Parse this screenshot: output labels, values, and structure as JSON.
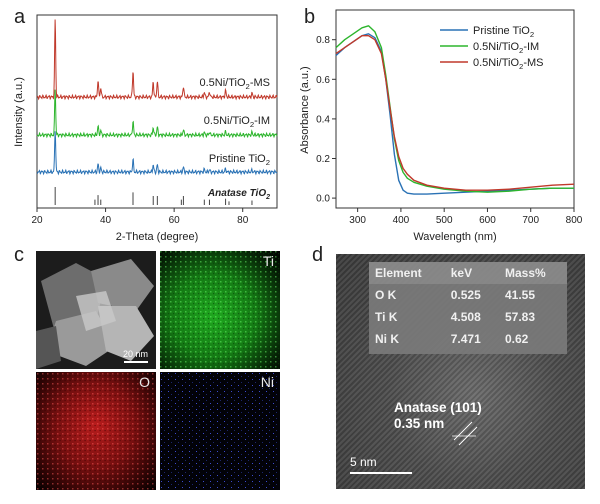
{
  "panels": {
    "a": "a",
    "b": "b",
    "c": "c",
    "d": "d"
  },
  "chart_data": [
    {
      "type": "line",
      "title": "",
      "xlabel": "2-Theta (degree)",
      "ylabel": "Intensity (a.u.)",
      "xlim": [
        20,
        90
      ],
      "x_ticks": [
        20,
        40,
        60,
        80
      ],
      "series": [
        {
          "name": "0.5Ni/TiO2-MS",
          "label_main": "0.5Ni/TiO",
          "label_sub": "2",
          "label_tail": "-MS",
          "color": "#c0392b",
          "peaks": [
            [
              25.3,
              1.0
            ],
            [
              37.8,
              0.22
            ],
            [
              38.6,
              0.12
            ],
            [
              48.0,
              0.34
            ],
            [
              53.9,
              0.2
            ],
            [
              55.1,
              0.2
            ],
            [
              62.7,
              0.14
            ],
            [
              68.8,
              0.06
            ],
            [
              70.3,
              0.07
            ],
            [
              75.0,
              0.08
            ],
            [
              82.7,
              0.05
            ]
          ]
        },
        {
          "name": "0.5Ni/TiO2-IM",
          "label_main": "0.5Ni/TiO",
          "label_sub": "2",
          "label_tail": "-IM",
          "color": "#2db52d",
          "peaks": [
            [
              25.3,
              0.6
            ],
            [
              37.8,
              0.12
            ],
            [
              38.6,
              0.06
            ],
            [
              48.0,
              0.18
            ],
            [
              53.9,
              0.1
            ],
            [
              55.1,
              0.1
            ],
            [
              62.7,
              0.07
            ],
            [
              68.8,
              0.03
            ],
            [
              70.3,
              0.04
            ],
            [
              75.0,
              0.04
            ],
            [
              82.7,
              0.03
            ]
          ]
        },
        {
          "name": "Pristine TiO2",
          "label_main": "Pristine TiO",
          "label_sub": "2",
          "label_tail": "",
          "color": "#2a72b5",
          "peaks": [
            [
              25.3,
              0.55
            ],
            [
              37.8,
              0.1
            ],
            [
              38.6,
              0.05
            ],
            [
              48.0,
              0.16
            ],
            [
              53.9,
              0.09
            ],
            [
              55.1,
              0.09
            ],
            [
              62.7,
              0.06
            ],
            [
              68.8,
              0.03
            ],
            [
              70.3,
              0.03
            ],
            [
              75.0,
              0.04
            ],
            [
              82.7,
              0.02
            ]
          ]
        }
      ],
      "reference": {
        "name": "Anatase TiO2",
        "label_main": "Anatase TiO",
        "label_sub": "2",
        "x": [
          25.3,
          36.9,
          37.8,
          38.6,
          48.0,
          53.9,
          55.1,
          62.1,
          62.7,
          68.8,
          70.3,
          75.0,
          76.0,
          82.7
        ],
        "h": [
          1.0,
          0.3,
          0.55,
          0.3,
          0.7,
          0.5,
          0.5,
          0.3,
          0.5,
          0.3,
          0.3,
          0.35,
          0.2,
          0.25
        ]
      }
    },
    {
      "type": "line",
      "title": "",
      "xlabel": "Wavelength (nm)",
      "ylabel": "Absorbance (a.u.)",
      "xlim": [
        250,
        800
      ],
      "ylim": [
        -0.05,
        0.95
      ],
      "x_ticks": [
        300,
        400,
        500,
        600,
        700,
        800
      ],
      "y_ticks": [
        "0.0",
        "0.2",
        "0.4",
        "0.6",
        "0.8"
      ],
      "y_tick_values": [
        0.0,
        0.2,
        0.4,
        0.6,
        0.8
      ],
      "series": [
        {
          "name": "Pristine TiO2",
          "label_main": "Pristine TiO",
          "label_sub": "2",
          "label_tail": "",
          "color": "#2a72b5",
          "x": [
            250,
            270,
            290,
            310,
            325,
            340,
            355,
            365,
            375,
            385,
            395,
            405,
            415,
            430,
            460,
            500,
            550,
            600,
            650,
            700,
            750,
            800
          ],
          "y": [
            0.72,
            0.76,
            0.79,
            0.82,
            0.83,
            0.81,
            0.74,
            0.6,
            0.42,
            0.22,
            0.09,
            0.04,
            0.025,
            0.02,
            0.02,
            0.025,
            0.03,
            0.035,
            0.04,
            0.045,
            0.05,
            0.05
          ]
        },
        {
          "name": "0.5Ni/TiO2-IM",
          "label_main": "0.5Ni/TiO",
          "label_sub": "2",
          "label_tail": "-IM",
          "color": "#2db52d",
          "x": [
            250,
            270,
            290,
            310,
            325,
            340,
            355,
            365,
            375,
            385,
            395,
            405,
            415,
            430,
            460,
            500,
            550,
            600,
            650,
            700,
            750,
            800
          ],
          "y": [
            0.76,
            0.8,
            0.83,
            0.86,
            0.87,
            0.84,
            0.76,
            0.62,
            0.46,
            0.3,
            0.19,
            0.13,
            0.1,
            0.08,
            0.06,
            0.045,
            0.035,
            0.03,
            0.035,
            0.045,
            0.05,
            0.05
          ]
        },
        {
          "name": "0.5Ni/TiO2-MS",
          "label_main": "0.5Ni/TiO",
          "label_sub": "2",
          "label_tail": "-MS",
          "color": "#c0392b",
          "x": [
            250,
            270,
            290,
            310,
            325,
            340,
            355,
            365,
            375,
            385,
            395,
            405,
            415,
            430,
            460,
            500,
            550,
            600,
            650,
            700,
            750,
            800
          ],
          "y": [
            0.73,
            0.76,
            0.79,
            0.82,
            0.82,
            0.8,
            0.73,
            0.6,
            0.45,
            0.31,
            0.21,
            0.15,
            0.12,
            0.09,
            0.065,
            0.05,
            0.04,
            0.04,
            0.045,
            0.055,
            0.065,
            0.07
          ]
        }
      ]
    }
  ],
  "panel_c": {
    "tiles": [
      {
        "label": "",
        "scale": "20 nm"
      },
      {
        "label": "Ti"
      },
      {
        "label": "O"
      },
      {
        "label": "Ni"
      }
    ]
  },
  "panel_d": {
    "table": {
      "headers": [
        "Element",
        "keV",
        "Mass%"
      ],
      "rows": [
        [
          "O K",
          "0.525",
          "41.55"
        ],
        [
          "Ti K",
          "4.508",
          "57.83"
        ],
        [
          "Ni K",
          "7.471",
          "0.62"
        ]
      ]
    },
    "lattice_label": "Anatase (101)",
    "d_spacing": "0.35 nm",
    "scale": "5 nm"
  },
  "colors": {
    "ms": "#c0392b",
    "im": "#2db52d",
    "pristine": "#2a72b5",
    "axis": "#333333"
  }
}
